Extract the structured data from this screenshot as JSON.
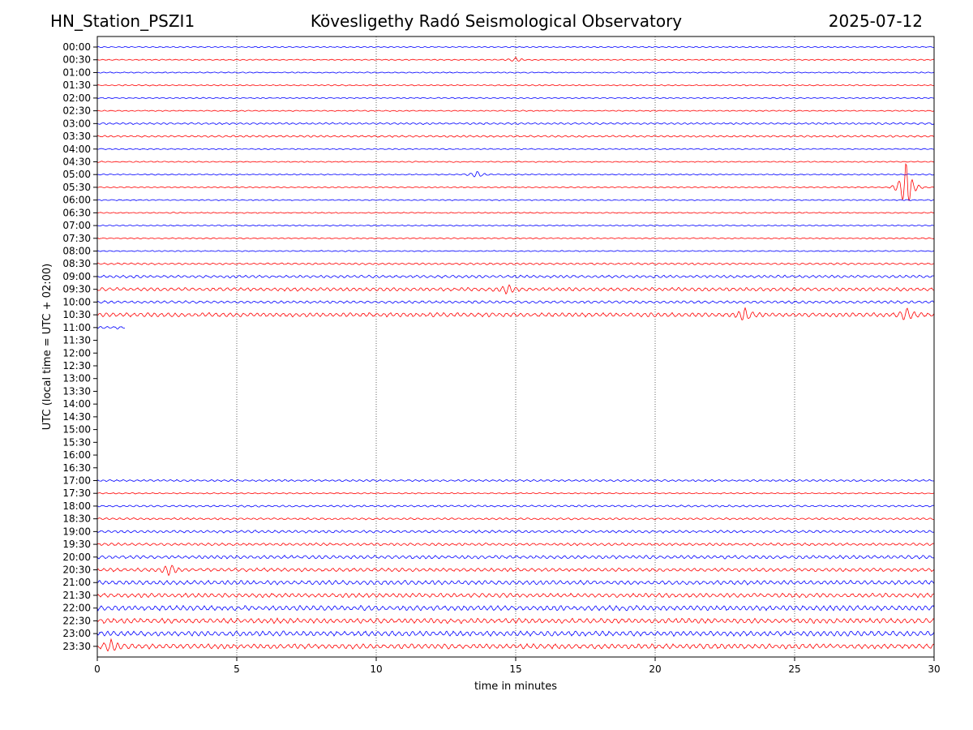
{
  "header": {
    "station": "HN_Station_PSZI1",
    "title": "Kövesligethy Radó Seismological Observatory",
    "date": "2025-07-12"
  },
  "chart_data": {
    "type": "line",
    "title": "Kövesligethy Radó Seismological Observatory",
    "xlabel": "time in minutes",
    "ylabel": "UTC (local time = UTC + 02:00)",
    "xlim": [
      0,
      30
    ],
    "x_ticks": [
      0,
      5,
      10,
      15,
      20,
      25,
      30
    ],
    "vertical_gridlines": [
      5,
      10,
      15,
      20,
      25
    ],
    "row_labels": [
      "00:00",
      "00:30",
      "01:00",
      "01:30",
      "02:00",
      "02:30",
      "03:00",
      "03:30",
      "04:00",
      "04:30",
      "05:00",
      "05:30",
      "06:00",
      "06:30",
      "07:00",
      "07:30",
      "08:00",
      "08:30",
      "09:00",
      "09:30",
      "10:00",
      "10:30",
      "11:00",
      "11:30",
      "12:00",
      "12:30",
      "13:00",
      "13:30",
      "14:00",
      "14:30",
      "15:00",
      "15:30",
      "16:00",
      "16:30",
      "17:00",
      "17:30",
      "18:00",
      "18:30",
      "19:00",
      "19:30",
      "20:00",
      "20:30",
      "21:00",
      "21:30",
      "22:00",
      "22:30",
      "23:00",
      "23:30"
    ],
    "colors": {
      "even_rows": "#0000ff",
      "odd_rows": "#ff0000"
    },
    "trace_extent_minutes": [
      30,
      30,
      30,
      30,
      30,
      30,
      30,
      30,
      30,
      30,
      30,
      30,
      30,
      30,
      30,
      30,
      30,
      30,
      30,
      30,
      30,
      30,
      1,
      0,
      0,
      0,
      0,
      0,
      0,
      0,
      0,
      0,
      0,
      0,
      30,
      30,
      30,
      30,
      30,
      30,
      30,
      30,
      30,
      30,
      30,
      30,
      30,
      30
    ],
    "activity_level": [
      1,
      1,
      1,
      1,
      1,
      1,
      2,
      2,
      1,
      1,
      1,
      1,
      1,
      1,
      1,
      1,
      1,
      2,
      3,
      4,
      3,
      5,
      3,
      0,
      0,
      0,
      0,
      0,
      0,
      0,
      0,
      0,
      0,
      0,
      2,
      1,
      2,
      2,
      3,
      3,
      4,
      4,
      5,
      5,
      6,
      6,
      6,
      6
    ],
    "events": [
      {
        "row": "05:30",
        "minute": 29.0,
        "amplitude": 6.5
      },
      {
        "row": "05:00",
        "minute": 13.6,
        "amplitude": 0.8
      },
      {
        "row": "00:30",
        "minute": 15.0,
        "amplitude": 0.5
      },
      {
        "row": "09:30",
        "minute": 14.7,
        "amplitude": 1.2
      },
      {
        "row": "10:30",
        "minute": 23.2,
        "amplitude": 1.6
      },
      {
        "row": "10:30",
        "minute": 29.0,
        "amplitude": 1.4
      },
      {
        "row": "20:30",
        "minute": 2.6,
        "amplitude": 1.3
      },
      {
        "row": "23:30",
        "minute": 0.5,
        "amplitude": 1.2
      }
    ]
  }
}
